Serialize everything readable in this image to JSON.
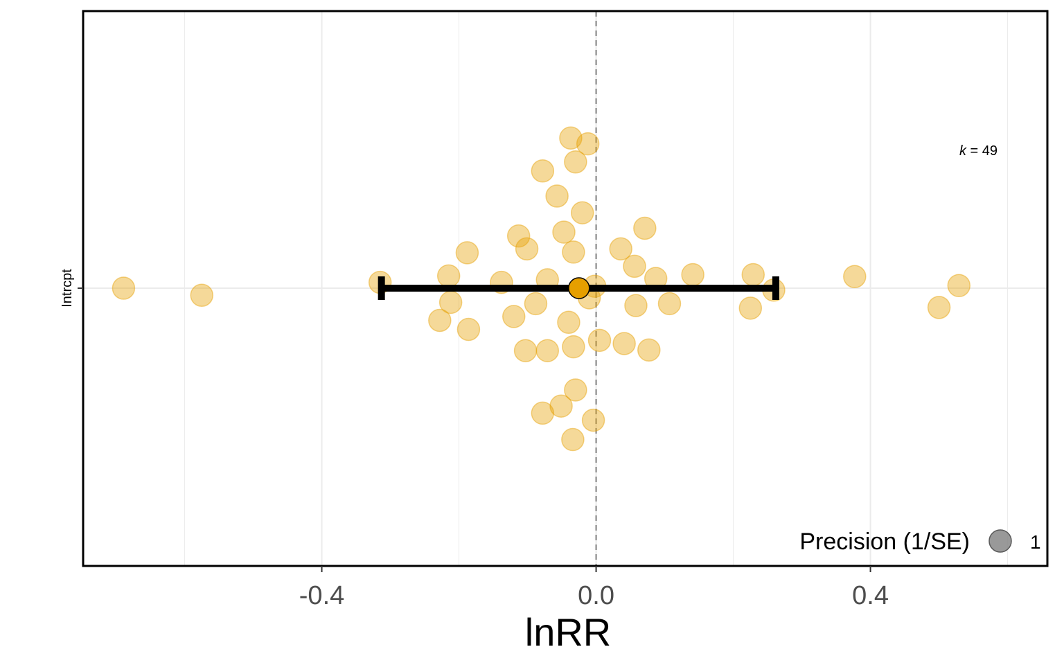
{
  "chart_data": {
    "type": "scatter",
    "subtype": "orchard-plot",
    "title": "",
    "xlabel": "lnRR",
    "ylabel": "",
    "y_categories": [
      "Intrcpt"
    ],
    "xlim": [
      -0.748,
      0.658
    ],
    "x_ticks": [
      -0.4,
      0.0,
      0.4
    ],
    "x_tick_labels": [
      "-0.4",
      "0.0",
      "0.4"
    ],
    "minor_gridlines": [
      -0.6,
      -0.2,
      0.2,
      0.6
    ],
    "reference_line": 0.0,
    "grid": true,
    "colors": {
      "points": "#E69F00",
      "estimate": "#E69F00",
      "interval": "#000000",
      "legend_marker": "#7f7f7f"
    },
    "k_label": {
      "italic": "k",
      "rest": " = 49"
    },
    "legend": {
      "title": "Precision (1/SE)",
      "entries": [
        "1"
      ],
      "placement": "bottom-right"
    },
    "estimate": {
      "value": -0.025,
      "ci_low": -0.313,
      "ci_high": 0.262
    },
    "points": [
      {
        "x": -0.689,
        "jitter": 0.0
      },
      {
        "x": -0.575,
        "jitter": -0.11
      },
      {
        "x": -0.315,
        "jitter": 0.09
      },
      {
        "x": -0.215,
        "jitter": 0.19
      },
      {
        "x": -0.212,
        "jitter": -0.22
      },
      {
        "x": -0.228,
        "jitter": -0.5
      },
      {
        "x": -0.188,
        "jitter": 0.55
      },
      {
        "x": -0.186,
        "jitter": -0.64
      },
      {
        "x": -0.138,
        "jitter": 0.09
      },
      {
        "x": -0.12,
        "jitter": -0.44
      },
      {
        "x": -0.113,
        "jitter": 0.81
      },
      {
        "x": -0.101,
        "jitter": 0.61
      },
      {
        "x": -0.103,
        "jitter": -0.97
      },
      {
        "x": -0.088,
        "jitter": -0.24
      },
      {
        "x": -0.078,
        "jitter": 1.82
      },
      {
        "x": -0.071,
        "jitter": 0.13
      },
      {
        "x": -0.071,
        "jitter": -0.97
      },
      {
        "x": -0.078,
        "jitter": -1.94
      },
      {
        "x": -0.057,
        "jitter": 1.43
      },
      {
        "x": -0.051,
        "jitter": -1.83
      },
      {
        "x": -0.047,
        "jitter": 0.87
      },
      {
        "x": -0.04,
        "jitter": -0.53
      },
      {
        "x": -0.037,
        "jitter": 2.33
      },
      {
        "x": -0.033,
        "jitter": 0.56
      },
      {
        "x": -0.033,
        "jitter": -0.91
      },
      {
        "x": -0.03,
        "jitter": -1.58
      },
      {
        "x": -0.034,
        "jitter": -2.35
      },
      {
        "x": -0.03,
        "jitter": 1.96
      },
      {
        "x": -0.02,
        "jitter": 1.17
      },
      {
        "x": -0.012,
        "jitter": 2.24
      },
      {
        "x": -0.01,
        "jitter": -0.15
      },
      {
        "x": -0.004,
        "jitter": -2.05
      },
      {
        "x": -0.002,
        "jitter": 0.03
      },
      {
        "x": 0.005,
        "jitter": -0.81
      },
      {
        "x": 0.036,
        "jitter": 0.61
      },
      {
        "x": 0.041,
        "jitter": -0.86
      },
      {
        "x": 0.056,
        "jitter": 0.34
      },
      {
        "x": 0.058,
        "jitter": -0.27
      },
      {
        "x": 0.071,
        "jitter": 0.93
      },
      {
        "x": 0.077,
        "jitter": -0.96
      },
      {
        "x": 0.087,
        "jitter": 0.15
      },
      {
        "x": 0.107,
        "jitter": -0.24
      },
      {
        "x": 0.141,
        "jitter": 0.21
      },
      {
        "x": 0.225,
        "jitter": -0.31
      },
      {
        "x": 0.229,
        "jitter": 0.21
      },
      {
        "x": 0.259,
        "jitter": -0.03
      },
      {
        "x": 0.377,
        "jitter": 0.18
      },
      {
        "x": 0.5,
        "jitter": -0.3
      },
      {
        "x": 0.529,
        "jitter": 0.04
      }
    ]
  }
}
